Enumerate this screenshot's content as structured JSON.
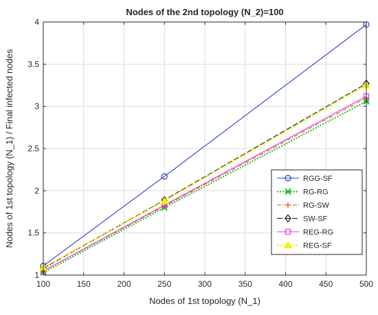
{
  "chart_data": {
    "type": "line",
    "title": "Nodes of the 2nd topology (N_2)=100",
    "xlabel": "Nodes of 1st topology (N_1)",
    "ylabel": "Nodes of 1st topology (N_1) / Final infected nodes",
    "x": [
      100,
      250,
      500
    ],
    "xlim": [
      100,
      500
    ],
    "ylim": [
      1,
      4
    ],
    "xticks": [
      "100",
      "150",
      "200",
      "250",
      "300",
      "350",
      "400",
      "450",
      "500"
    ],
    "yticks": [
      "1",
      "1.5",
      "2",
      "2.5",
      "3",
      "3.5",
      "4"
    ],
    "grid": true,
    "legend_position": "right",
    "series": [
      {
        "name": "RGG-SF",
        "values": [
          1.11,
          2.17,
          3.97
        ],
        "color": "#2b3bd1",
        "dash": "",
        "marker": "circle"
      },
      {
        "name": "RG-RG",
        "values": [
          1.03,
          1.8,
          3.06
        ],
        "color": "#22c322",
        "dash": "2,2",
        "marker": "x"
      },
      {
        "name": "RG-SW",
        "values": [
          1.05,
          1.82,
          3.1
        ],
        "color": "#e03c3c",
        "dash": "6,2,1.5,2",
        "marker": "plus"
      },
      {
        "name": "SW-SF",
        "values": [
          1.08,
          1.89,
          3.27
        ],
        "color": "#111111",
        "dash": "8,3",
        "marker": "diamond"
      },
      {
        "name": "REG-RG",
        "values": [
          1.05,
          1.83,
          3.12
        ],
        "color": "#ef35d5",
        "dash": "",
        "marker": "square"
      },
      {
        "name": "REG-SF",
        "values": [
          1.09,
          1.88,
          3.25
        ],
        "color": "#f2f200",
        "dash": "2,2",
        "marker": "triangle"
      }
    ]
  }
}
